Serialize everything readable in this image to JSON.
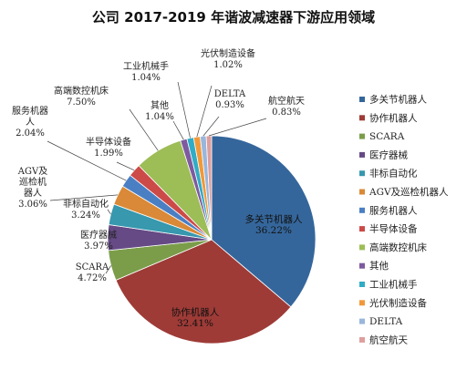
{
  "chart_data": {
    "type": "pie",
    "title": "公司 2017-2019 年谐波减速器下游应用领域",
    "legend_position": "right",
    "slices": [
      {
        "name": "多关节机器人",
        "value": 36.22,
        "label": "36.22%",
        "color": "#35669b",
        "name_lines": [
          "多关节机器人"
        ]
      },
      {
        "name": "协作机器人",
        "value": 32.41,
        "label": "32.41%",
        "color": "#9e3b37",
        "name_lines": [
          "协作机器人"
        ]
      },
      {
        "name": "SCARA",
        "value": 4.72,
        "label": "4.72%",
        "color": "#7b9d4a",
        "name_lines": [
          "SCARA"
        ]
      },
      {
        "name": "医疗器械",
        "value": 3.97,
        "label": "3.97%",
        "color": "#654a85",
        "name_lines": [
          "医疗器械"
        ]
      },
      {
        "name": "非标自动化",
        "value": 3.24,
        "label": "3.24%",
        "color": "#3798ae",
        "name_lines": [
          "非标自动化"
        ]
      },
      {
        "name": "AGV及巡检机器人",
        "value": 3.06,
        "label": "3.06%",
        "color": "#d98937",
        "name_lines": [
          "AGV及",
          "巡检机",
          "器人"
        ]
      },
      {
        "name": "服务机器人",
        "value": 2.04,
        "label": "2.04%",
        "color": "#4b7fc4",
        "name_lines": [
          "服务机器",
          "人"
        ]
      },
      {
        "name": "半导体设备",
        "value": 1.99,
        "label": "1.99%",
        "color": "#cc4a48",
        "name_lines": [
          "半导体设备"
        ]
      },
      {
        "name": "高端数控机床",
        "value": 7.5,
        "label": "7.50%",
        "color": "#9dbd57",
        "name_lines": [
          "高端数控机床"
        ]
      },
      {
        "name": "其他",
        "value": 1.04,
        "label": "1.04%",
        "color": "#7e5a9f",
        "name_lines": [
          "其他"
        ]
      },
      {
        "name": "工业机械手",
        "value": 1.04,
        "label": "1.04%",
        "color": "#30acc6",
        "name_lines": [
          "工业机械手"
        ]
      },
      {
        "name": "光伏制造设备",
        "value": 1.02,
        "label": "1.02%",
        "color": "#f1993a",
        "name_lines": [
          "光伏制造设备"
        ]
      },
      {
        "name": "DELTA",
        "value": 0.93,
        "label": "0.93%",
        "color": "#99b6dc",
        "name_lines": [
          "DELTA"
        ]
      },
      {
        "name": "航空航天",
        "value": 0.83,
        "label": "0.83%",
        "color": "#de9e9d",
        "name_lines": [
          "航空航天"
        ]
      }
    ]
  }
}
